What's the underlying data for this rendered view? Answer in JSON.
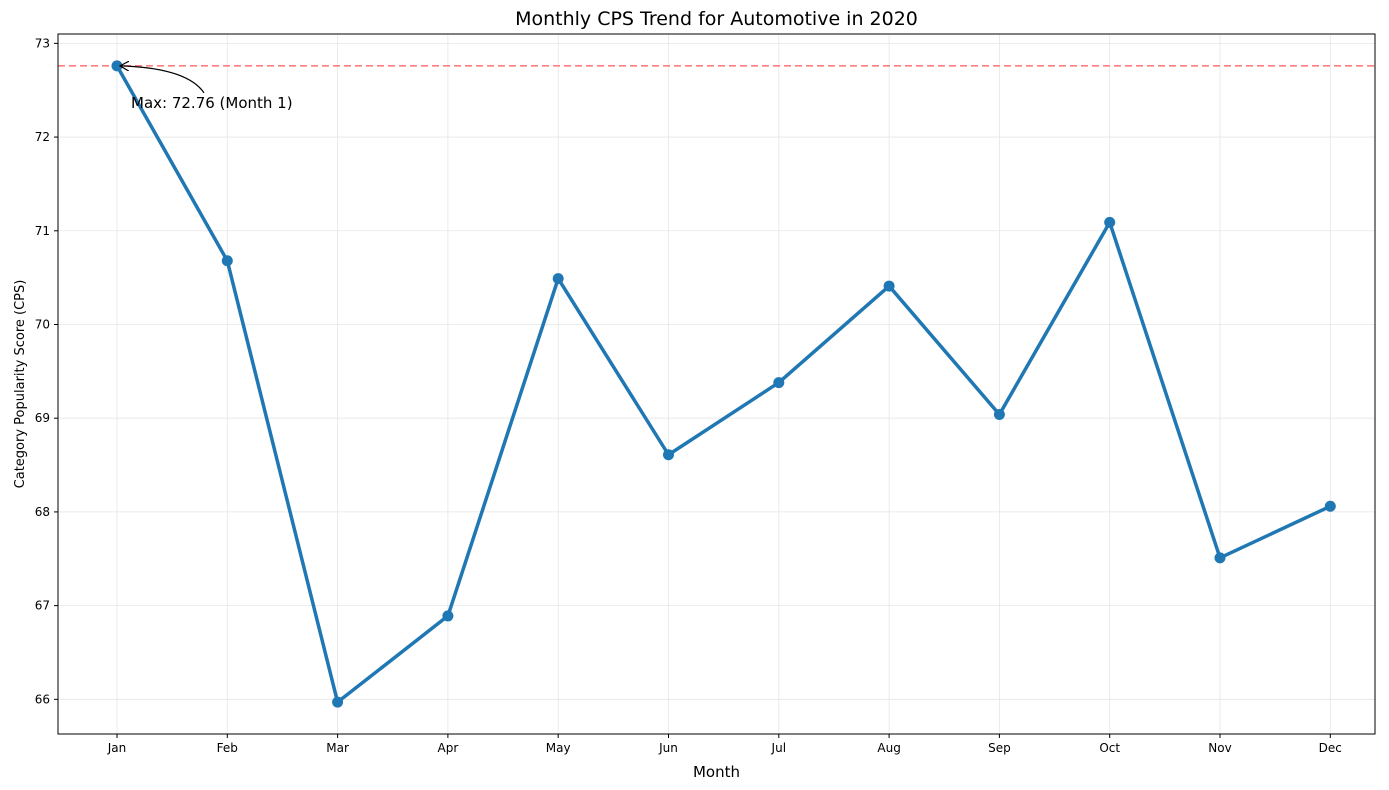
{
  "chart_data": {
    "type": "line",
    "title": "Monthly CPS Trend for Automotive in 2020",
    "xlabel": "Month",
    "ylabel": "Category Popularity Score (CPS)",
    "categories": [
      "Jan",
      "Feb",
      "Mar",
      "Apr",
      "May",
      "Jun",
      "Jul",
      "Aug",
      "Sep",
      "Oct",
      "Nov",
      "Dec"
    ],
    "series": [
      {
        "values": [
          72.76,
          70.68,
          65.97,
          66.89,
          70.49,
          68.61,
          69.38,
          70.41,
          69.04,
          71.09,
          67.51,
          68.06
        ]
      }
    ],
    "ylim": [
      65.63,
      73.1
    ],
    "yticks": [
      66,
      67,
      68,
      69,
      70,
      71,
      72,
      73
    ],
    "grid": true,
    "reference_line": {
      "value": 72.76,
      "style": "dashed"
    },
    "annotation": {
      "text": "Max: 72.76 (Month 1)",
      "category": "Jan",
      "value": 72.76
    },
    "colors": {
      "line": "#1f77b4",
      "reference": "#ff7f7f",
      "grid": "#e6e6e6"
    }
  }
}
